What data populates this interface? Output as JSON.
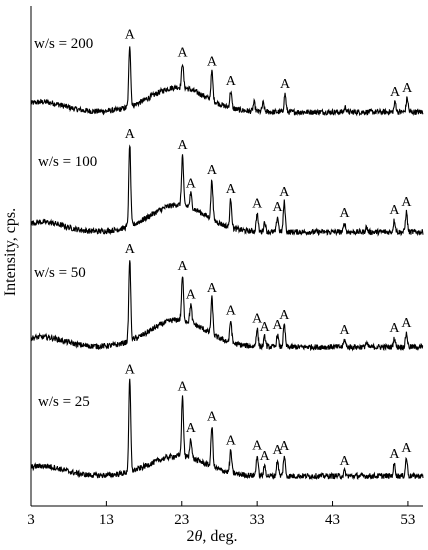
{
  "chart_data": {
    "type": "line",
    "xlabel": "2θ, deg.",
    "xlabel_parts": {
      "prefix": "2",
      "symbol": "θ",
      "suffix": ", deg."
    },
    "ylabel": "Intensity, cps.",
    "xlim": [
      3,
      55
    ],
    "x_ticks": [
      3,
      13,
      23,
      33,
      43,
      53
    ],
    "x_tick_labels": [
      "3",
      "13",
      "23",
      "33",
      "43",
      "53"
    ],
    "grid": false,
    "legend": "none",
    "line_color": "#000000",
    "peak_label": "A",
    "series": [
      {
        "name": "w/s = 200",
        "baseline": 0.45,
        "hump": 0.62,
        "peaks": [
          {
            "x": 16.1,
            "h": 1.55,
            "labeled": true
          },
          {
            "x": 23.1,
            "h": 0.62,
            "labeled": true
          },
          {
            "x": 27.0,
            "h": 0.72,
            "labeled": true
          },
          {
            "x": 29.5,
            "h": 0.42,
            "labeled": true
          },
          {
            "x": 32.6,
            "h": 0.22,
            "labeled": false
          },
          {
            "x": 33.8,
            "h": 0.22,
            "labeled": false
          },
          {
            "x": 36.7,
            "h": 0.45,
            "labeled": true
          },
          {
            "x": 44.7,
            "h": 0.12,
            "labeled": false
          },
          {
            "x": 51.3,
            "h": 0.25,
            "labeled": true
          },
          {
            "x": 52.9,
            "h": 0.35,
            "labeled": true
          }
        ]
      },
      {
        "name": "w/s = 100",
        "baseline": 0.45,
        "hump": 0.68,
        "peaks": [
          {
            "x": 16.1,
            "h": 2.05,
            "labeled": true
          },
          {
            "x": 23.1,
            "h": 1.25,
            "labeled": true
          },
          {
            "x": 24.2,
            "h": 0.35,
            "labeled": true
          },
          {
            "x": 27.0,
            "h": 0.98,
            "labeled": true
          },
          {
            "x": 29.5,
            "h": 0.72,
            "labeled": true
          },
          {
            "x": 33.0,
            "h": 0.45,
            "labeled": true
          },
          {
            "x": 34.0,
            "h": 0.25,
            "labeled": false
          },
          {
            "x": 35.7,
            "h": 0.38,
            "labeled": true
          },
          {
            "x": 36.6,
            "h": 0.75,
            "labeled": true
          },
          {
            "x": 44.6,
            "h": 0.22,
            "labeled": true
          },
          {
            "x": 47.5,
            "h": 0.12,
            "labeled": false
          },
          {
            "x": 51.2,
            "h": 0.3,
            "labeled": true
          },
          {
            "x": 52.8,
            "h": 0.5,
            "labeled": true
          }
        ]
      },
      {
        "name": "w/s = 50",
        "baseline": 0.45,
        "hump": 0.68,
        "peaks": [
          {
            "x": 16.1,
            "h": 2.05,
            "labeled": true
          },
          {
            "x": 23.1,
            "h": 1.1,
            "labeled": true
          },
          {
            "x": 24.2,
            "h": 0.45,
            "labeled": true
          },
          {
            "x": 27.0,
            "h": 0.9,
            "labeled": true
          },
          {
            "x": 29.5,
            "h": 0.55,
            "labeled": true
          },
          {
            "x": 33.0,
            "h": 0.45,
            "labeled": true
          },
          {
            "x": 34.0,
            "h": 0.25,
            "labeled": true
          },
          {
            "x": 35.7,
            "h": 0.3,
            "labeled": true
          },
          {
            "x": 36.6,
            "h": 0.55,
            "labeled": true
          },
          {
            "x": 44.6,
            "h": 0.18,
            "labeled": true
          },
          {
            "x": 47.5,
            "h": 0.1,
            "labeled": false
          },
          {
            "x": 51.2,
            "h": 0.22,
            "labeled": true
          },
          {
            "x": 52.8,
            "h": 0.35,
            "labeled": true
          }
        ]
      },
      {
        "name": "w/s = 25",
        "baseline": 0.4,
        "hump": 0.5,
        "peaks": [
          {
            "x": 16.1,
            "h": 2.3,
            "labeled": true
          },
          {
            "x": 23.1,
            "h": 1.5,
            "labeled": true
          },
          {
            "x": 24.2,
            "h": 0.5,
            "labeled": true
          },
          {
            "x": 27.0,
            "h": 1.0,
            "labeled": true
          },
          {
            "x": 29.5,
            "h": 0.55,
            "labeled": true
          },
          {
            "x": 33.0,
            "h": 0.5,
            "labeled": true
          },
          {
            "x": 34.0,
            "h": 0.25,
            "labeled": true
          },
          {
            "x": 35.7,
            "h": 0.4,
            "labeled": true
          },
          {
            "x": 36.6,
            "h": 0.5,
            "labeled": true
          },
          {
            "x": 44.6,
            "h": 0.12,
            "labeled": true
          },
          {
            "x": 51.2,
            "h": 0.3,
            "labeled": true
          },
          {
            "x": 52.8,
            "h": 0.45,
            "labeled": true
          }
        ]
      }
    ]
  }
}
